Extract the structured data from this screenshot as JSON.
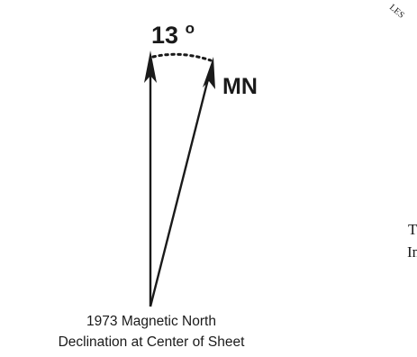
{
  "diagram": {
    "angle_label": "13",
    "degree_symbol": "o",
    "mn_label": "MN",
    "caption_line1": "1973 Magnetic North",
    "caption_line2": "Declination at Center of Sheet",
    "corner_fragment_top": "LES",
    "margin_text_line1": "T",
    "margin_text_line2": "In"
  },
  "colors": {
    "ink": "#1a1a1a",
    "background": "#ffffff"
  }
}
